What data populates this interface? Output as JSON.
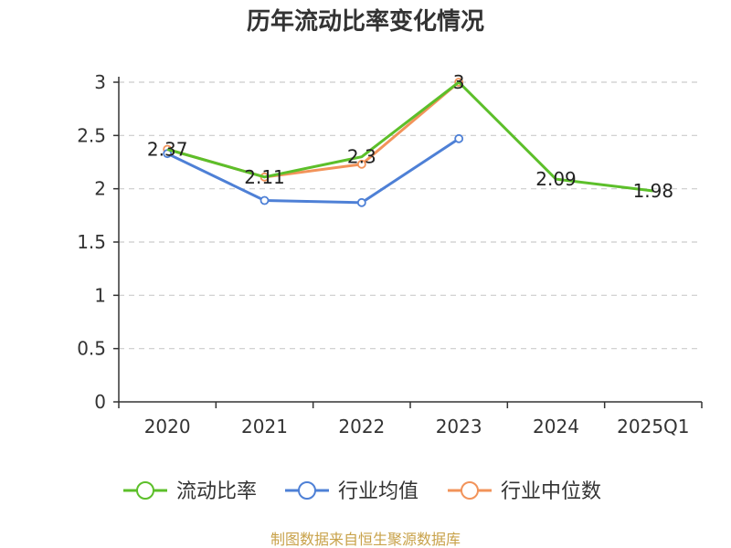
{
  "chart_data": {
    "type": "line",
    "title": "历年流动比率变化情况",
    "categories": [
      "2020",
      "2021",
      "2022",
      "2023",
      "2024",
      "2025Q1"
    ],
    "ylim": [
      0,
      3
    ],
    "yticks": [
      0,
      0.5,
      1,
      1.5,
      2,
      2.5,
      3
    ],
    "ytick_labels": [
      "0",
      "0.5",
      "1",
      "1.5",
      "2",
      "2.5",
      "3"
    ],
    "grid": true,
    "legend_position": "bottom-center",
    "series": [
      {
        "name": "流动比率",
        "color": "#5cbf2a",
        "marker": "none",
        "values": [
          2.37,
          2.11,
          2.3,
          3,
          2.09,
          1.98
        ],
        "labels": [
          "2.37",
          "2.11",
          "2.3",
          "3",
          "2.09",
          "1.98"
        ]
      },
      {
        "name": "行业均值",
        "color": "#4e80d6",
        "marker": "circle",
        "values": [
          2.33,
          1.89,
          1.87,
          2.47,
          null,
          null
        ]
      },
      {
        "name": "行业中位数",
        "color": "#f2935a",
        "marker": "circle",
        "values": [
          2.37,
          2.11,
          2.23,
          3.0,
          null,
          null
        ]
      }
    ],
    "source": "制图数据来自恒生聚源数据库"
  }
}
